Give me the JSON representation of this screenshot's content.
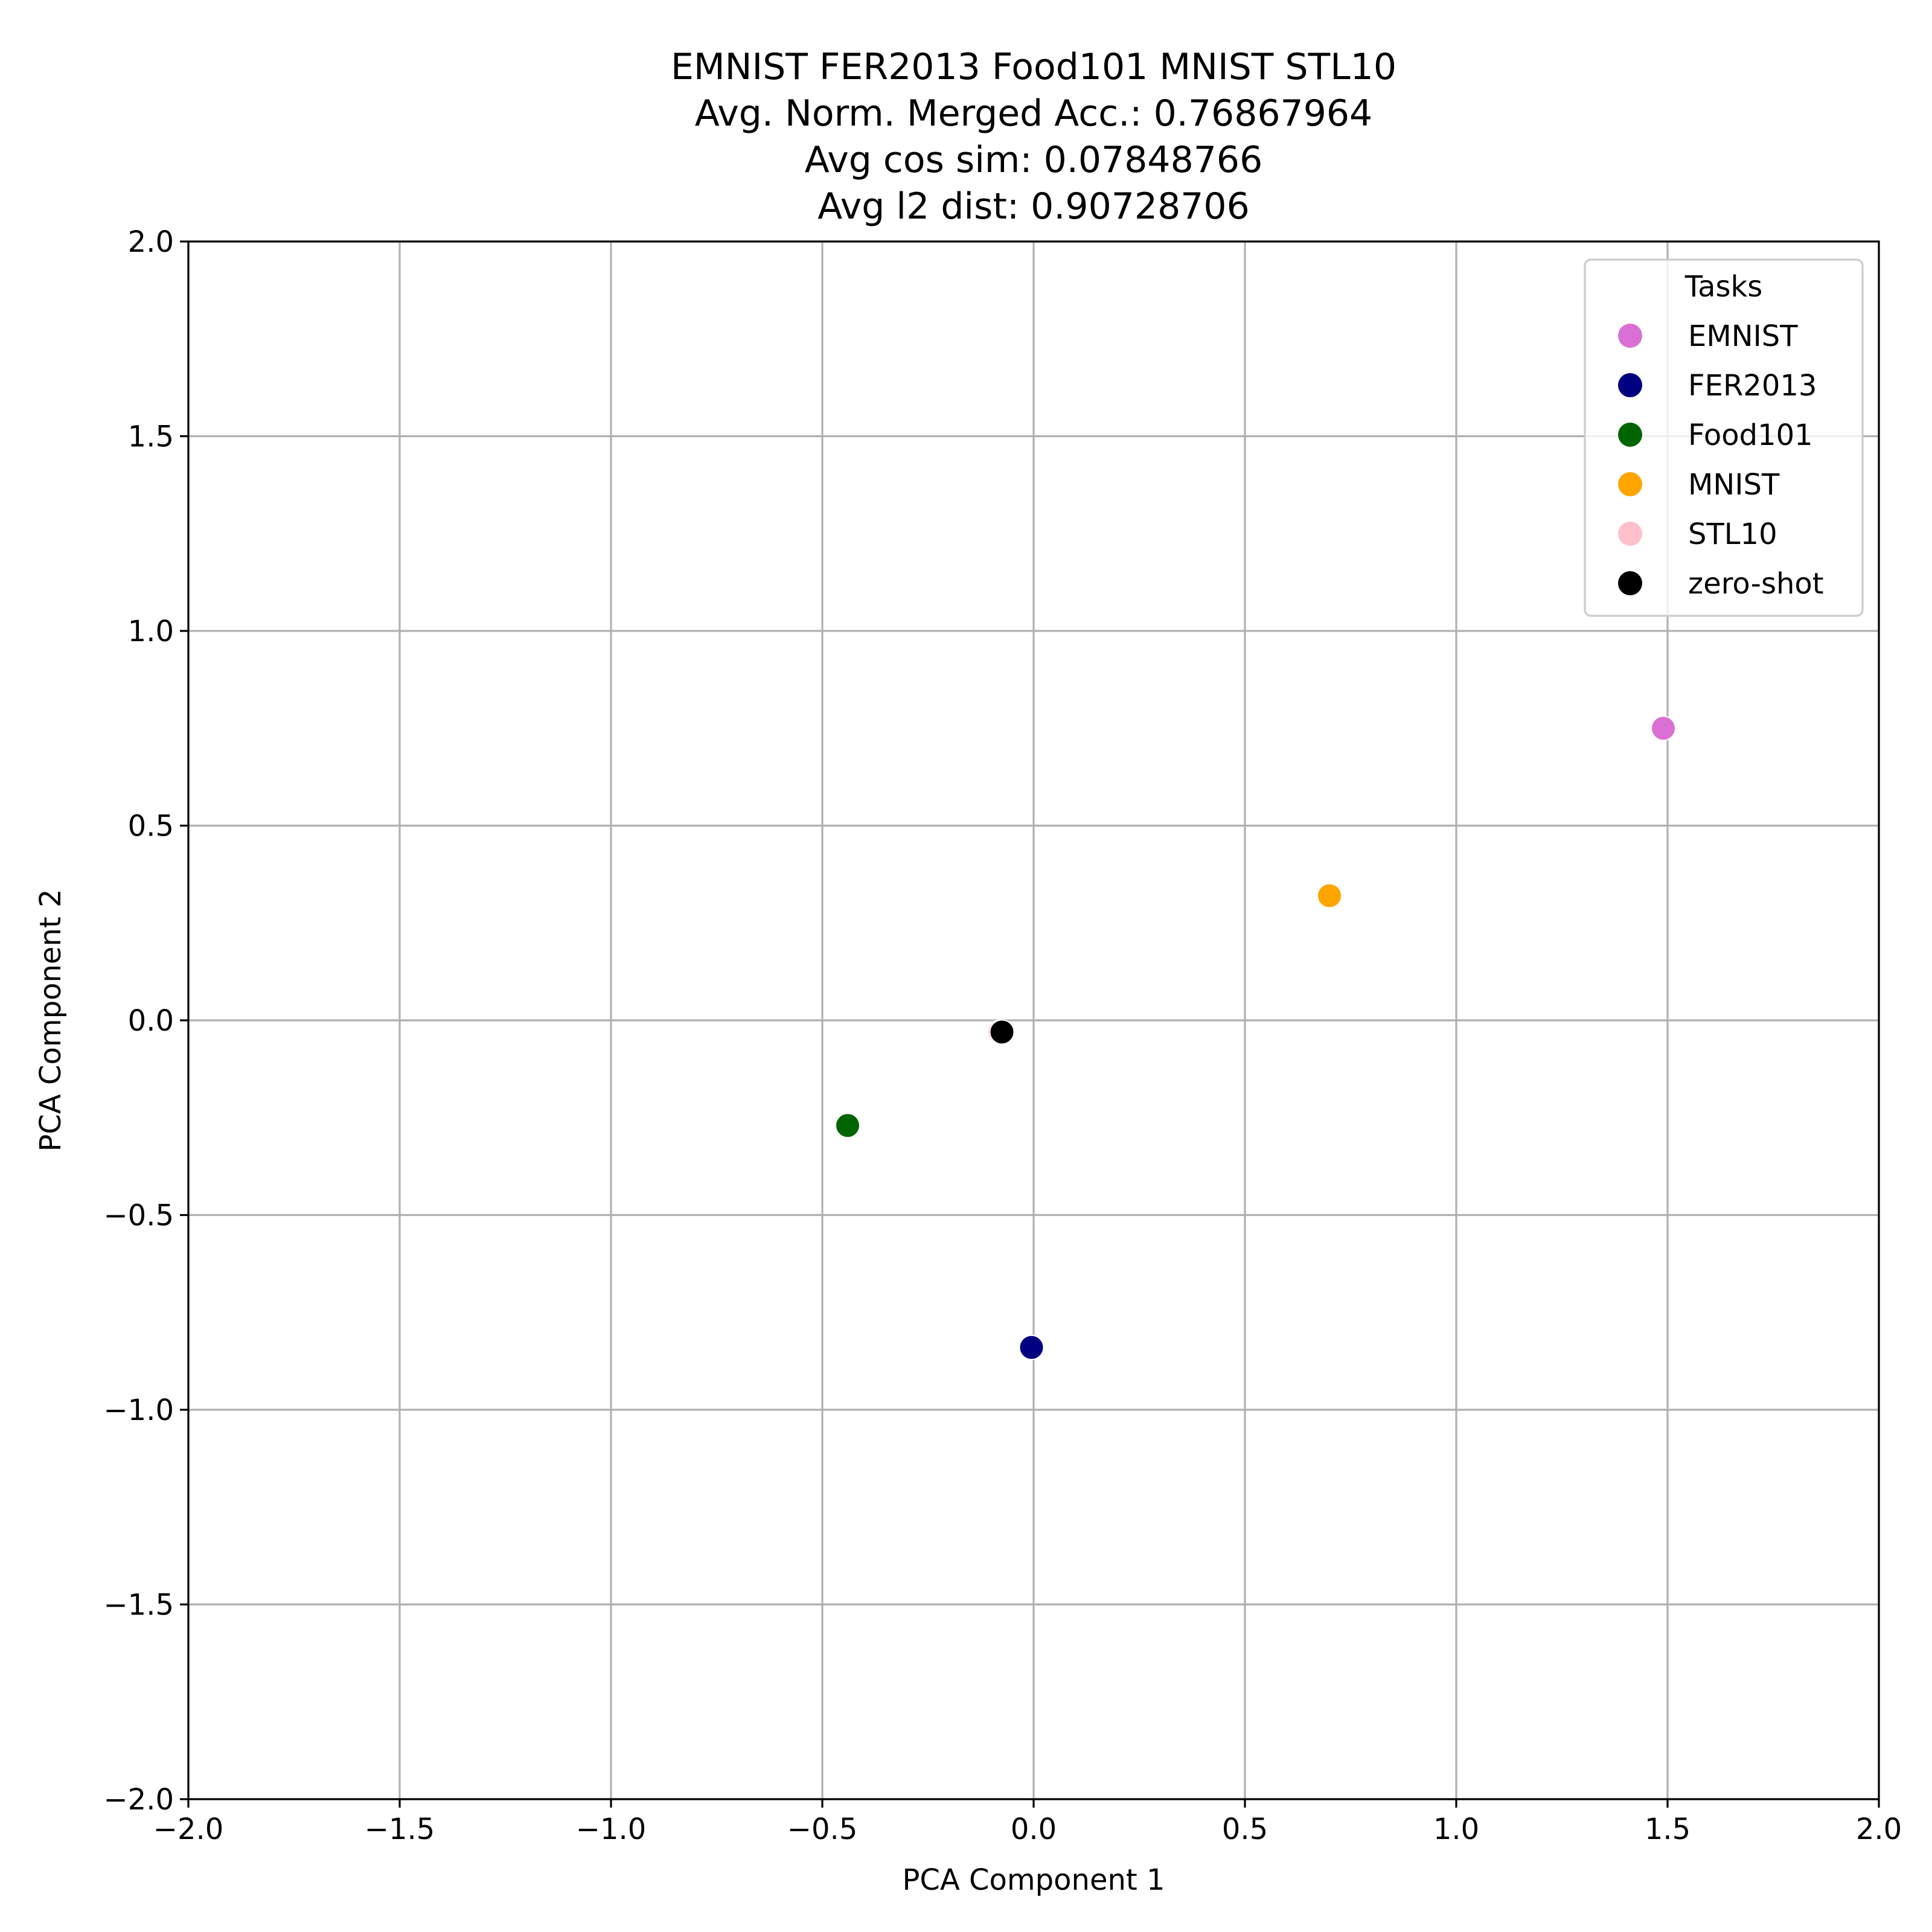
{
  "chart_data": {
    "type": "scatter",
    "title_lines": [
      "EMNIST FER2013 Food101 MNIST STL10",
      "Avg. Norm. Merged Acc.: 0.76867964",
      "Avg cos sim: 0.07848766",
      "Avg l2 dist: 0.90728706"
    ],
    "xlabel": "PCA Component 1",
    "ylabel": "PCA Component 2",
    "xlim": [
      -2.0,
      2.0
    ],
    "ylim": [
      -2.0,
      2.0
    ],
    "xticks": [
      -2.0,
      -1.5,
      -1.0,
      -0.5,
      0.0,
      0.5,
      1.0,
      1.5,
      2.0
    ],
    "yticks": [
      -2.0,
      -1.5,
      -1.0,
      -0.5,
      0.0,
      0.5,
      1.0,
      1.5,
      2.0
    ],
    "xtick_labels": [
      "−2.0",
      "−1.5",
      "−1.0",
      "−0.5",
      "0.0",
      "0.5",
      "1.0",
      "1.5",
      "2.0"
    ],
    "ytick_labels": [
      "−2.0",
      "−1.5",
      "−1.0",
      "−0.5",
      "0.0",
      "0.5",
      "1.0",
      "1.5",
      "2.0"
    ],
    "grid": true,
    "legend": {
      "title": "Tasks",
      "placement": "top-right"
    },
    "series": [
      {
        "name": "EMNIST",
        "color": "#da70d6",
        "points": [
          {
            "x": 1.49,
            "y": 0.75
          }
        ]
      },
      {
        "name": "FER2013",
        "color": "#000080",
        "points": [
          {
            "x": -0.005,
            "y": -0.84
          }
        ]
      },
      {
        "name": "Food101",
        "color": "#006400",
        "points": [
          {
            "x": -0.44,
            "y": -0.27
          }
        ]
      },
      {
        "name": "MNIST",
        "color": "#ffa500",
        "points": [
          {
            "x": 0.7,
            "y": 0.32
          }
        ]
      },
      {
        "name": "STL10",
        "color": "#ffc0cb",
        "points": [
          {
            "x": -0.08,
            "y": -0.03
          }
        ]
      },
      {
        "name": "zero-shot",
        "color": "#000000",
        "points": [
          {
            "x": -0.075,
            "y": -0.03
          }
        ]
      }
    ]
  }
}
